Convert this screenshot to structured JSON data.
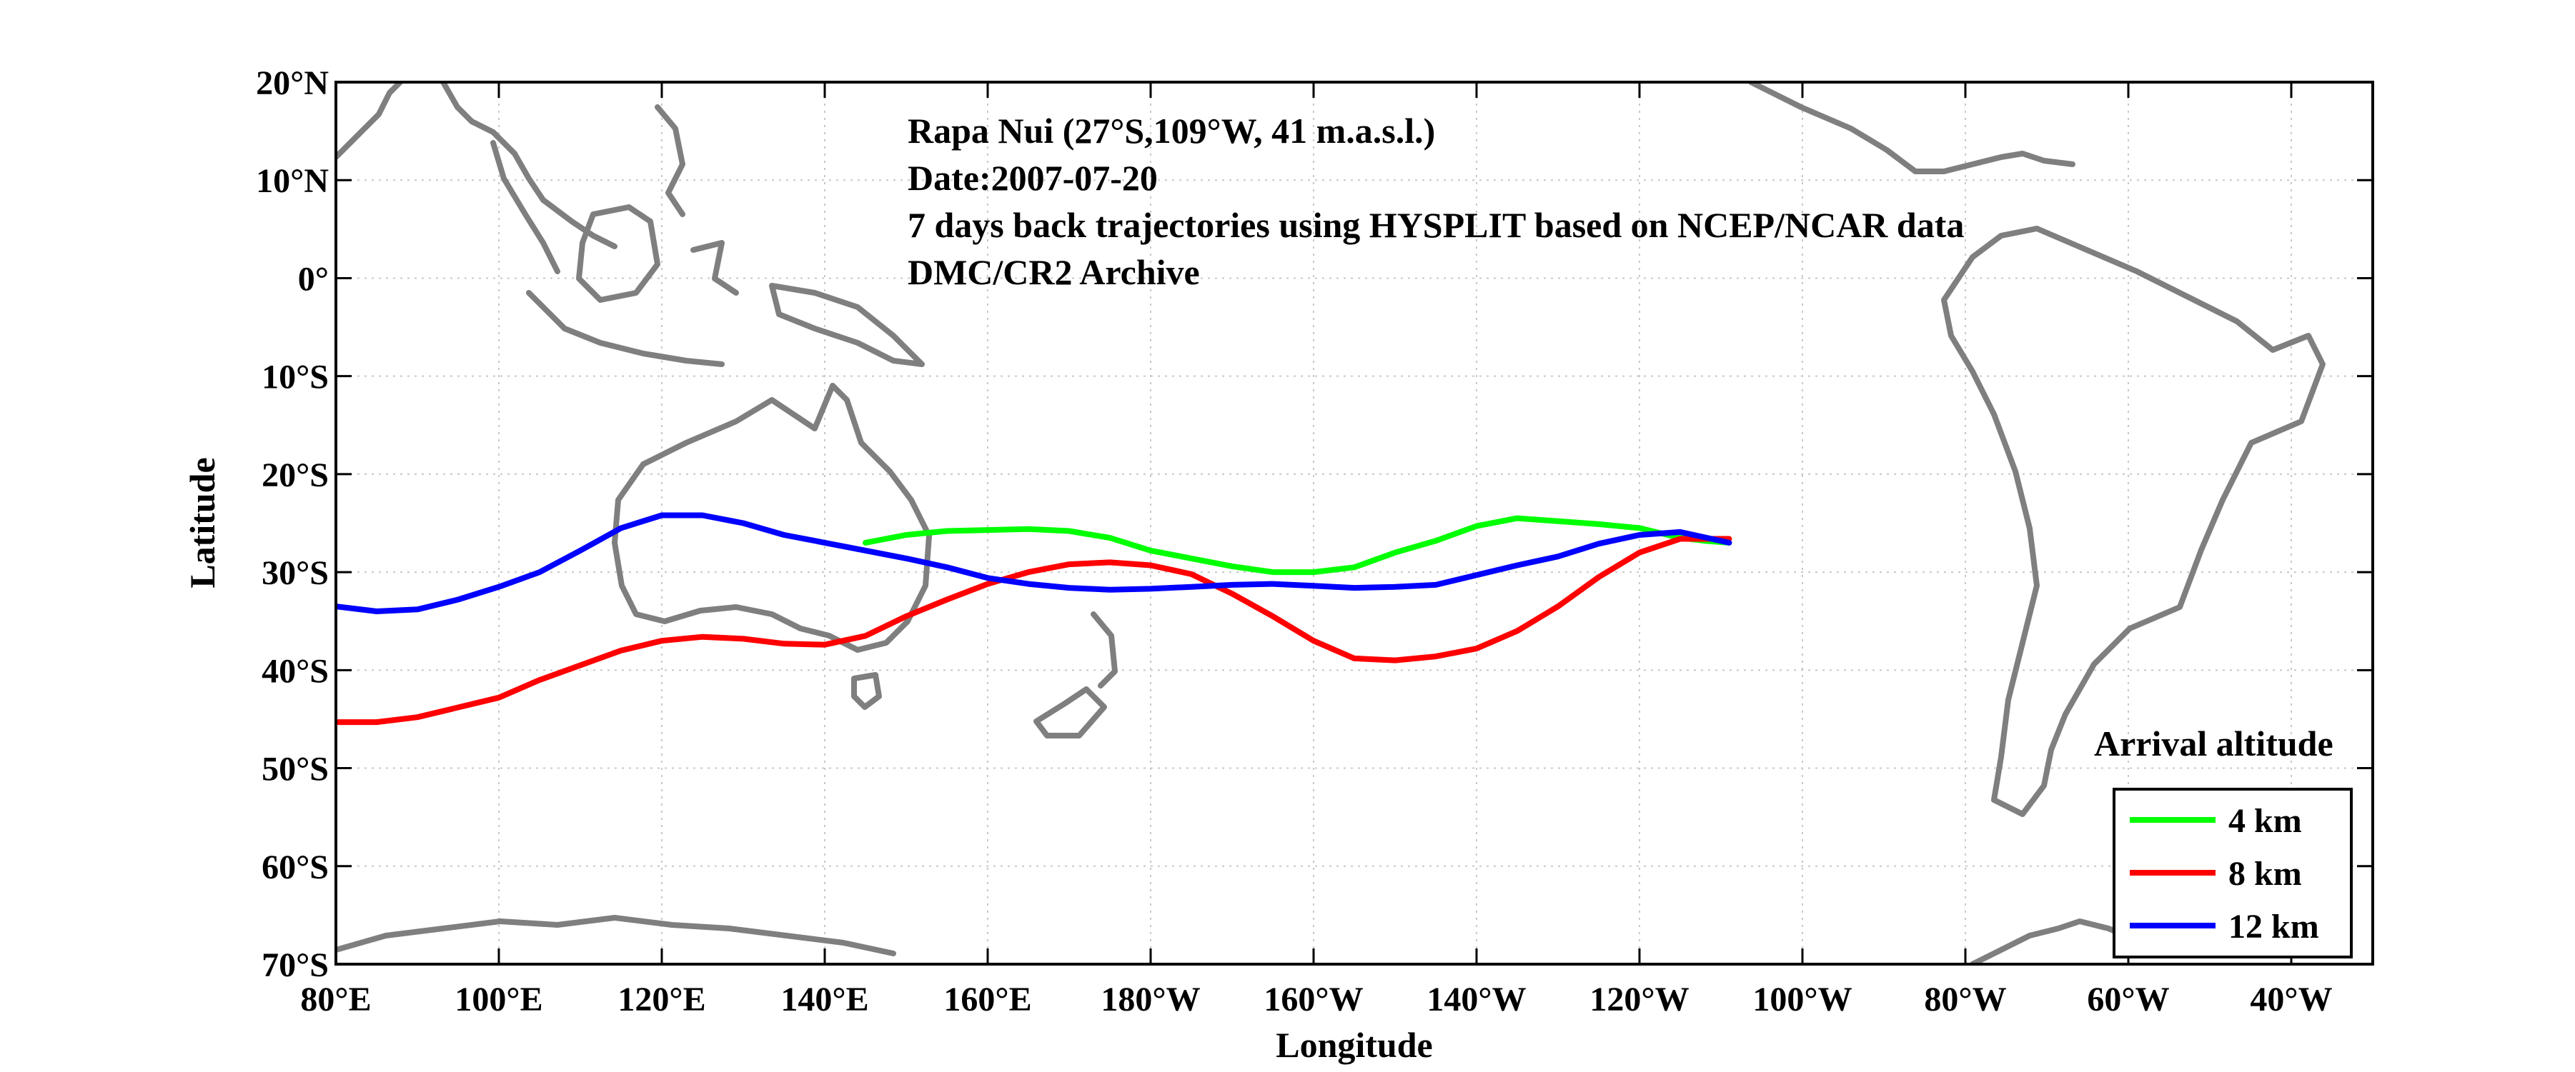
{
  "chart_data": {
    "type": "line",
    "subtype": "map-trajectories",
    "annotations": [
      "Rapa Nui (27°S,109°W, 41 m.a.s.l.)",
      "Date:2007-07-20",
      "7 days back trajectories using HYSPLIT based on NCEP/NCAR data",
      "DMC/CR2 Archive"
    ],
    "xlabel": "Longitude",
    "ylabel": "Latitude",
    "xlim": [
      80,
      330
    ],
    "ylim": [
      -70,
      20
    ],
    "x_ticks": [
      80,
      100,
      120,
      140,
      160,
      180,
      200,
      220,
      240,
      260,
      280,
      300,
      320
    ],
    "x_tick_labels": [
      "80°E",
      "100°E",
      "120°E",
      "140°E",
      "160°E",
      "180°W",
      "160°W",
      "140°W",
      "120°W",
      "100°W",
      "80°W",
      "60°W",
      "40°W"
    ],
    "y_ticks": [
      20,
      10,
      0,
      -10,
      -20,
      -30,
      -40,
      -50,
      -60,
      -70
    ],
    "y_tick_labels": [
      "20°N",
      "10°N",
      "0°",
      "10°S",
      "20°S",
      "30°S",
      "40°S",
      "50°S",
      "60°S",
      "70°S"
    ],
    "grid": true,
    "legend": {
      "title": "Arrival altitude",
      "position": "bottom-right"
    },
    "series": [
      {
        "name": "4 km",
        "color": "#00ff00",
        "x": [
          145,
          150,
          155,
          160,
          165,
          170,
          175,
          180,
          185,
          190,
          195,
          200,
          205,
          210,
          215,
          220,
          225,
          230,
          235,
          240,
          245,
          248,
          251
        ],
        "y": [
          -27,
          -26.2,
          -25.8,
          -25.7,
          -25.6,
          -25.8,
          -26.5,
          -27.8,
          -28.6,
          -29.4,
          -30,
          -30,
          -29.5,
          -28,
          -26.8,
          -25.3,
          -24.5,
          -24.8,
          -25.1,
          -25.5,
          -26.5,
          -26.8,
          -27
        ]
      },
      {
        "name": "8 km",
        "color": "#ff0000",
        "x": [
          80,
          85,
          90,
          95,
          100,
          105,
          110,
          115,
          120,
          125,
          130,
          135,
          140,
          145,
          150,
          155,
          160,
          165,
          170,
          175,
          180,
          185,
          190,
          195,
          200,
          205,
          210,
          215,
          220,
          225,
          230,
          235,
          240,
          245,
          251
        ],
        "y": [
          -45.3,
          -45.3,
          -44.8,
          -43.8,
          -42.8,
          -41,
          -39.5,
          -38,
          -37,
          -36.6,
          -36.8,
          -37.3,
          -37.4,
          -36.5,
          -34.5,
          -32.8,
          -31.2,
          -30,
          -29.2,
          -29,
          -29.3,
          -30.2,
          -32.2,
          -34.5,
          -37,
          -38.8,
          -39,
          -38.6,
          -37.8,
          -36,
          -33.5,
          -30.5,
          -28,
          -26.6,
          -26.6
        ]
      },
      {
        "name": "12 km",
        "color": "#0000ff",
        "x": [
          80,
          85,
          90,
          95,
          100,
          105,
          110,
          115,
          120,
          125,
          130,
          135,
          140,
          145,
          150,
          155,
          160,
          165,
          170,
          175,
          180,
          185,
          190,
          195,
          200,
          205,
          210,
          215,
          220,
          225,
          230,
          235,
          240,
          245,
          251
        ],
        "y": [
          -33.5,
          -34,
          -33.8,
          -32.8,
          -31.5,
          -30,
          -27.8,
          -25.5,
          -24.2,
          -24.2,
          -25,
          -26.2,
          -27,
          -27.8,
          -28.6,
          -29.5,
          -30.6,
          -31.2,
          -31.6,
          -31.8,
          -31.7,
          -31.5,
          -31.3,
          -31.2,
          -31.4,
          -31.6,
          -31.5,
          -31.3,
          -30.3,
          -29.3,
          -28.4,
          -27.1,
          -26.2,
          -25.9,
          -27
        ]
      }
    ]
  }
}
